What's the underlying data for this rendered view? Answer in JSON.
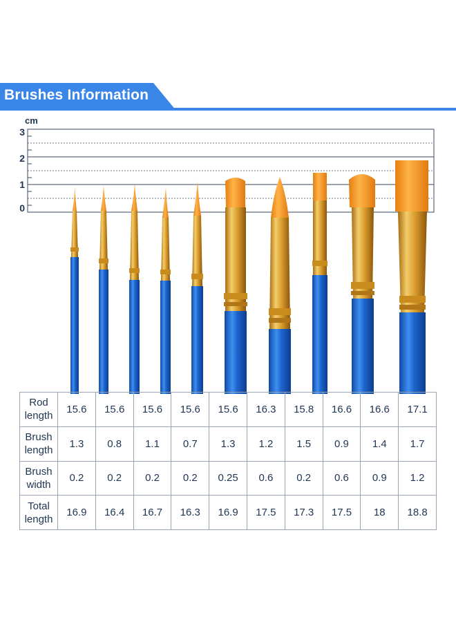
{
  "header": {
    "title": "Brushes Information"
  },
  "ruler": {
    "unit": "cm",
    "ticks": [
      "3",
      "2",
      "1",
      "0"
    ]
  },
  "colors": {
    "accent": "#3a86e8",
    "handle": "#1b5fbf",
    "ferrule": "#d9a02a",
    "bristle": "#f59a1c"
  },
  "table": {
    "rows": [
      {
        "label": "Rod length",
        "values": [
          "15.6",
          "15.6",
          "15.6",
          "15.6",
          "15.6",
          "16.3",
          "15.8",
          "16.6",
          "16.6",
          "17.1"
        ]
      },
      {
        "label": "Brush length",
        "values": [
          "1.3",
          "0.8",
          "1.1",
          "0.7",
          "1.3",
          "1.2",
          "1.5",
          "0.9",
          "1.4",
          "1.7"
        ]
      },
      {
        "label": "Brush width",
        "values": [
          "0.2",
          "0.2",
          "0.2",
          "0.2",
          "0.25",
          "0.6",
          "0.2",
          "0.6",
          "0.9",
          "1.2"
        ]
      },
      {
        "label": "Total length",
        "values": [
          "16.9",
          "16.4",
          "16.7",
          "16.3",
          "16.9",
          "17.5",
          "17.3",
          "17.5",
          "18",
          "18.8"
        ]
      }
    ]
  }
}
